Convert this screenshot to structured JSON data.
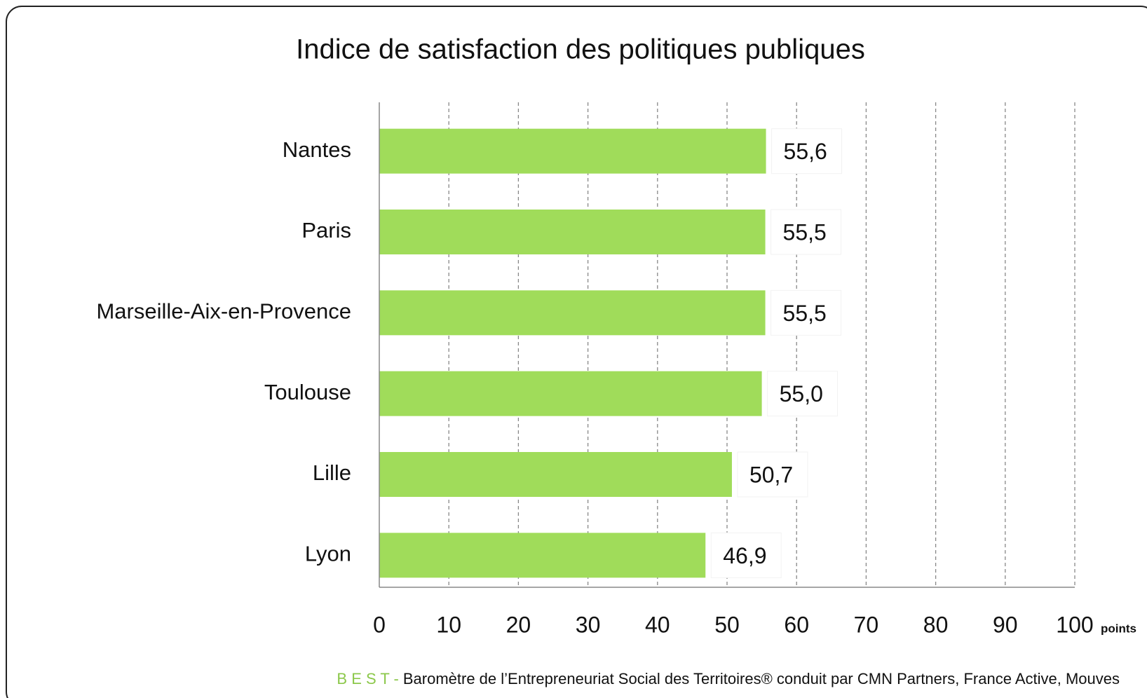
{
  "chart_data": {
    "type": "bar",
    "orientation": "horizontal",
    "title": "Indice de satisfaction des politiques publiques",
    "categories": [
      "Nantes",
      "Paris",
      "Marseille-Aix-en-Provence",
      "Toulouse",
      "Lille",
      "Lyon"
    ],
    "values": [
      55.6,
      55.5,
      55.5,
      55.0,
      50.7,
      46.9
    ],
    "value_labels": [
      "55,6",
      "55,5",
      "55,5",
      "55,0",
      "50,7",
      "46,9"
    ],
    "color": "#a0dc5a",
    "xlim": [
      0,
      100
    ],
    "xticks": [
      0,
      10,
      20,
      30,
      40,
      50,
      60,
      70,
      80,
      90,
      100
    ],
    "x_unit": "points",
    "grid": true,
    "source_prefix": "B E S T -",
    "source": "Baromètre de l’Entrepreneuriat Social des Territoires® conduit par CMN Partners, France Active, Mouves"
  }
}
